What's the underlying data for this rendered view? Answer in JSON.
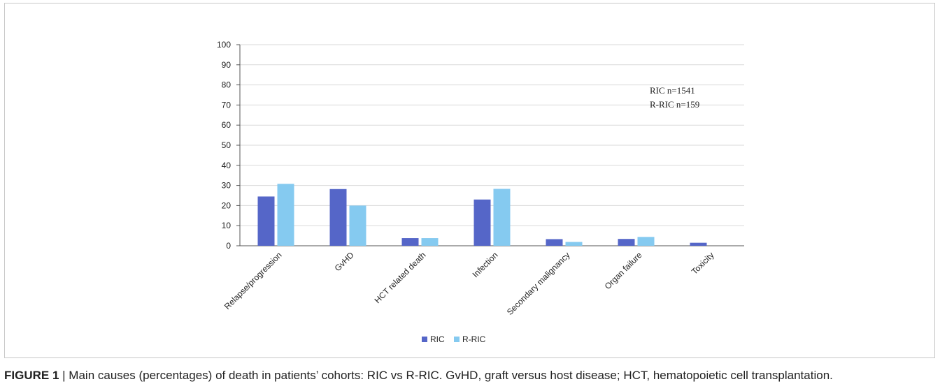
{
  "chart_data": {
    "type": "bar",
    "categories": [
      "Relapse/progression",
      "GvHD",
      "HCT related death",
      "Infection",
      "Secondary malignancy",
      "Organ failure",
      "Toxicity"
    ],
    "series": [
      {
        "name": "RIC",
        "color": "#5566c8",
        "values": [
          24.5,
          28.2,
          3.8,
          23,
          3.3,
          3.4,
          1.5
        ]
      },
      {
        "name": "R-RIC",
        "color": "#85caf0",
        "values": [
          30.8,
          20,
          3.8,
          28.3,
          1.9,
          4.4,
          0
        ]
      }
    ],
    "ylim": [
      0,
      100
    ],
    "yticks": [
      0,
      10,
      20,
      30,
      40,
      50,
      60,
      70,
      80,
      90,
      100
    ],
    "annotations": [
      "RIC n=1541",
      "R-RIC n=159"
    ],
    "grid": true,
    "legend": "bottom-center"
  },
  "caption": {
    "label": "FIGURE 1",
    "separator": "|",
    "text": "Main causes (percentages) of death in patients’ cohorts: RIC vs R-RIC. GvHD, graft versus host disease; HCT, hematopoietic cell transplantation."
  }
}
